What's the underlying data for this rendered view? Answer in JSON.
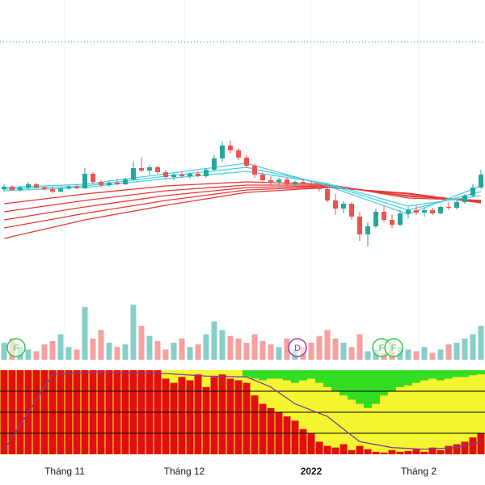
{
  "chart_data": {
    "type": "candlestick",
    "up_color": "#26a69a",
    "down_color": "#ef5350",
    "ylim": [
      0,
      370
    ],
    "ref_line": 318,
    "ref_color": "#26a69a",
    "ohlc": [
      [
        136,
        142,
        133,
        139
      ],
      [
        139,
        141,
        134,
        135
      ],
      [
        135,
        140,
        133,
        138
      ],
      [
        138,
        145,
        136,
        142
      ],
      [
        142,
        144,
        137,
        138
      ],
      [
        138,
        140,
        134,
        136
      ],
      [
        136,
        139,
        131,
        133
      ],
      [
        133,
        138,
        132,
        137
      ],
      [
        137,
        141,
        135,
        139
      ],
      [
        139,
        142,
        136,
        137
      ],
      [
        137,
        162,
        136,
        155
      ],
      [
        155,
        157,
        142,
        145
      ],
      [
        145,
        147,
        138,
        141
      ],
      [
        141,
        146,
        139,
        144
      ],
      [
        144,
        149,
        141,
        142
      ],
      [
        142,
        150,
        141,
        148
      ],
      [
        148,
        170,
        146,
        162
      ],
      [
        162,
        175,
        157,
        159
      ],
      [
        159,
        166,
        154,
        163
      ],
      [
        163,
        165,
        155,
        157
      ],
      [
        157,
        160,
        148,
        151
      ],
      [
        151,
        156,
        147,
        154
      ],
      [
        154,
        158,
        150,
        152
      ],
      [
        152,
        157,
        149,
        155
      ],
      [
        155,
        158,
        151,
        152
      ],
      [
        152,
        162,
        150,
        160
      ],
      [
        160,
        178,
        158,
        174
      ],
      [
        174,
        195,
        170,
        190
      ],
      [
        190,
        196,
        180,
        184
      ],
      [
        184,
        187,
        172,
        175
      ],
      [
        175,
        178,
        162,
        165
      ],
      [
        165,
        168,
        150,
        154
      ],
      [
        154,
        157,
        143,
        147
      ],
      [
        147,
        152,
        141,
        145
      ],
      [
        145,
        150,
        141,
        148
      ],
      [
        148,
        150,
        140,
        142
      ],
      [
        142,
        147,
        139,
        145
      ],
      [
        145,
        149,
        141,
        143
      ],
      [
        143,
        146,
        136,
        140
      ],
      [
        140,
        143,
        133,
        136
      ],
      [
        136,
        138,
        120,
        122
      ],
      [
        122,
        130,
        104,
        112
      ],
      [
        112,
        121,
        106,
        118
      ],
      [
        118,
        120,
        98,
        102
      ],
      [
        102,
        108,
        72,
        80
      ],
      [
        80,
        95,
        65,
        90
      ],
      [
        90,
        112,
        88,
        108
      ],
      [
        108,
        115,
        95,
        98
      ],
      [
        98,
        104,
        88,
        92
      ],
      [
        92,
        110,
        90,
        106
      ],
      [
        106,
        114,
        100,
        110
      ],
      [
        110,
        116,
        104,
        107
      ],
      [
        107,
        112,
        102,
        110
      ],
      [
        110,
        113,
        104,
        106
      ],
      [
        106,
        116,
        105,
        114
      ],
      [
        114,
        120,
        110,
        113
      ],
      [
        113,
        122,
        111,
        120
      ],
      [
        120,
        130,
        118,
        128
      ],
      [
        128,
        142,
        126,
        138
      ],
      [
        138,
        160,
        136,
        154
      ]
    ],
    "ma_x": [
      0,
      10,
      20,
      30,
      40,
      50,
      59
    ],
    "ma_series": [
      {
        "color": "#e53935",
        "values": [
          118,
          130,
          140,
          145,
          142,
          125,
          122
        ]
      },
      {
        "color": "#e53935",
        "values": [
          108,
          122,
          134,
          141,
          141,
          127,
          122
        ]
      },
      {
        "color": "#e53935",
        "values": [
          98,
          114,
          128,
          138,
          140,
          128,
          121
        ]
      },
      {
        "color": "#e53935",
        "values": [
          88,
          106,
          122,
          135,
          139,
          130,
          120
        ]
      },
      {
        "color": "#e53935",
        "values": [
          75,
          98,
          116,
          132,
          138,
          131,
          119
        ]
      },
      {
        "color": "#4dd0e1",
        "values": [
          138,
          142,
          155,
          168,
          140,
          105,
          140
        ]
      },
      {
        "color": "#4dd0e1",
        "values": [
          136,
          140,
          152,
          163,
          142,
          110,
          133
        ]
      },
      {
        "color": "#4dd0e1",
        "values": [
          134,
          138,
          149,
          158,
          143,
          115,
          128
        ]
      }
    ],
    "volume_ylim": [
      0,
      100
    ],
    "volume": [
      20,
      25,
      15,
      12,
      10,
      18,
      22,
      30,
      15,
      12,
      62,
      25,
      35,
      20,
      15,
      18,
      65,
      40,
      28,
      22,
      12,
      20,
      25,
      15,
      18,
      30,
      45,
      35,
      28,
      25,
      20,
      30,
      22,
      18,
      15,
      25,
      12,
      15,
      20,
      28,
      35,
      25,
      20,
      15,
      30,
      10,
      12,
      8,
      10,
      15,
      12,
      10,
      15,
      8,
      12,
      18,
      20,
      25,
      30,
      40
    ],
    "markers": [
      {
        "label": "F",
        "x": 1.5,
        "color": "#2ecc40"
      },
      {
        "label": "D",
        "x": 36.3,
        "color": "#8e44ad"
      },
      {
        "label": "F",
        "x": 46.7,
        "color": "#2ecc40"
      },
      {
        "label": "F",
        "x": 48.2,
        "color": "#2ecc40"
      }
    ],
    "indicator_ylim": [
      0,
      100
    ],
    "indicator_levels": [
      25,
      50,
      75
    ],
    "indicator_low": {
      "color": "#e01010",
      "values": [
        100,
        100,
        100,
        100,
        100,
        100,
        100,
        100,
        100,
        100,
        100,
        100,
        100,
        100,
        100,
        100,
        100,
        100,
        100,
        100,
        90,
        85,
        92,
        88,
        95,
        80,
        92,
        95,
        90,
        88,
        85,
        70,
        60,
        55,
        50,
        45,
        40,
        30,
        25,
        15,
        10,
        8,
        12,
        5,
        10,
        6,
        3,
        2,
        5,
        3,
        4,
        6,
        3,
        8,
        5,
        10,
        12,
        15,
        20,
        25
      ]
    },
    "indicator_high": {
      "color": "#33dd22",
      "values": [
        0,
        0,
        0,
        0,
        0,
        0,
        0,
        0,
        0,
        0,
        0,
        0,
        0,
        0,
        0,
        0,
        0,
        0,
        0,
        0,
        0,
        0,
        0,
        0,
        0,
        0,
        0,
        0,
        0,
        0,
        8,
        10,
        12,
        10,
        10,
        12,
        15,
        12,
        10,
        15,
        20,
        25,
        30,
        35,
        40,
        45,
        40,
        30,
        25,
        20,
        18,
        15,
        12,
        10,
        12,
        10,
        8,
        8,
        6,
        5
      ]
    },
    "indicator_mid_color": "#f4f430",
    "indicator_line": {
      "color": "#7b3fa0",
      "x": [
        0,
        3,
        6,
        9,
        12,
        15,
        20,
        25,
        30,
        33,
        36,
        40,
        44,
        48,
        52,
        56,
        59
      ],
      "values": [
        5,
        50,
        95,
        97,
        98,
        97,
        96,
        93,
        92,
        80,
        60,
        45,
        15,
        8,
        6,
        8,
        15
      ]
    },
    "xticks": [
      {
        "label": "Tháng 11",
        "x": 7.5
      },
      {
        "label": "Tháng 12",
        "x": 22.3
      },
      {
        "label": "2022",
        "x": 38,
        "bold": true
      },
      {
        "label": "Tháng 2",
        "x": 51.3
      }
    ],
    "grid": true
  }
}
